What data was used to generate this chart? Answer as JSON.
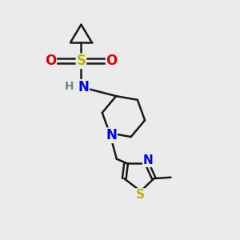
{
  "background_color": "#ebebeb",
  "bond_color": "#1a1a1a",
  "atom_colors": {
    "S_sulfonyl": "#b8b800",
    "S_thiazole": "#b8b800",
    "O": "#dd0000",
    "N": "#0000ee",
    "H": "#6a8a8a",
    "C": "#1a1a1a"
  },
  "bond_width": 1.8,
  "font_size": 11,
  "xlim": [
    0,
    10
  ],
  "ylim": [
    0,
    10
  ],
  "figsize": [
    3.0,
    3.0
  ],
  "dpi": 100
}
